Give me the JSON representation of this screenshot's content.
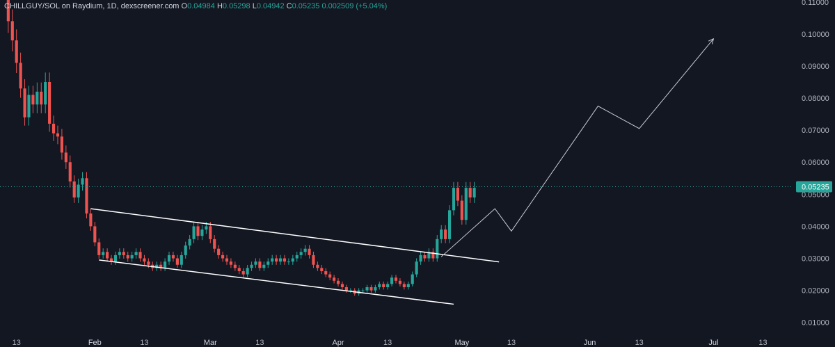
{
  "legend": {
    "symbol": "CHILLGUY/SOL on Raydium, 1D, dexscreener.com",
    "o_label": "O",
    "o_value": "0.04984",
    "h_label": "H",
    "h_value": "0.05298",
    "l_label": "L",
    "l_value": "0.04942",
    "c_label": "C",
    "c_value": "0.05235",
    "change": "0.002509 (+5.04%)"
  },
  "colors": {
    "background": "#131722",
    "up": "#26a69a",
    "down": "#ef5350",
    "axis_text": "#b2b5be",
    "last_price_badge": "#26a69a",
    "trendline": "#ffffff",
    "projection": "#c8cbd3"
  },
  "chart_data": {
    "type": "candlestick",
    "title": "",
    "xlabel": "",
    "ylabel": "",
    "ylim": [
      0.0069,
      0.1106
    ],
    "x_range": [
      "2025-01-09",
      "2025-07-20"
    ],
    "grid": false,
    "y_ticks": [
      "0.11000",
      "0.10000",
      "0.09000",
      "0.08000",
      "0.07000",
      "0.06000",
      "0.05000",
      "0.04000",
      "0.03000",
      "0.02000",
      "0.01000"
    ],
    "x_ticks": [
      {
        "label": "13",
        "date": "2025-01-13",
        "major": false
      },
      {
        "label": "Feb",
        "date": "2025-02-01",
        "major": true
      },
      {
        "label": "13",
        "date": "2025-02-13",
        "major": false
      },
      {
        "label": "Mar",
        "date": "2025-03-01",
        "major": true
      },
      {
        "label": "13",
        "date": "2025-03-13",
        "major": false
      },
      {
        "label": "Apr",
        "date": "2025-04-01",
        "major": true
      },
      {
        "label": "13",
        "date": "2025-04-13",
        "major": false
      },
      {
        "label": "May",
        "date": "2025-05-01",
        "major": true
      },
      {
        "label": "13",
        "date": "2025-05-13",
        "major": false
      },
      {
        "label": "Jun",
        "date": "2025-06-01",
        "major": true
      },
      {
        "label": "13",
        "date": "2025-06-13",
        "major": false
      },
      {
        "label": "Jul",
        "date": "2025-07-01",
        "major": true
      },
      {
        "label": "13",
        "date": "2025-07-13",
        "major": false
      }
    ],
    "last_price": "0.05235",
    "last_price_value": 0.05235,
    "closes": [
      0.116,
      0.104,
      0.098,
      0.091,
      0.083,
      0.074,
      0.081,
      0.078,
      0.082,
      0.078,
      0.085,
      0.072,
      0.069,
      0.068,
      0.063,
      0.06,
      0.054,
      0.049,
      0.053,
      0.055,
      0.044,
      0.04,
      0.035,
      0.031,
      0.032,
      0.03,
      0.029,
      0.031,
      0.032,
      0.031,
      0.03,
      0.031,
      0.032,
      0.03,
      0.029,
      0.028,
      0.027,
      0.028,
      0.027,
      0.029,
      0.031,
      0.03,
      0.028,
      0.031,
      0.034,
      0.036,
      0.04,
      0.037,
      0.039,
      0.04,
      0.036,
      0.033,
      0.031,
      0.03,
      0.029,
      0.028,
      0.027,
      0.026,
      0.025,
      0.027,
      0.028,
      0.029,
      0.027,
      0.028,
      0.029,
      0.03,
      0.029,
      0.03,
      0.029,
      0.029,
      0.03,
      0.031,
      0.032,
      0.033,
      0.031,
      0.028,
      0.027,
      0.026,
      0.025,
      0.024,
      0.023,
      0.022,
      0.021,
      0.02,
      0.02,
      0.019,
      0.02,
      0.02,
      0.021,
      0.02,
      0.021,
      0.022,
      0.021,
      0.022,
      0.024,
      0.023,
      0.022,
      0.021,
      0.022,
      0.025,
      0.029,
      0.031,
      0.03,
      0.032,
      0.03,
      0.036,
      0.039,
      0.036,
      0.045,
      0.052,
      0.048,
      0.042,
      0.052,
      0.049,
      0.052
    ]
  },
  "trendlines": [
    {
      "name": "channel-upper",
      "from": {
        "date": "2025-01-31",
        "price": 0.0455
      },
      "to": {
        "date": "2025-05-10",
        "price": 0.0289
      }
    },
    {
      "name": "channel-lower",
      "from": {
        "date": "2025-02-02",
        "price": 0.0295
      },
      "to": {
        "date": "2025-04-29",
        "price": 0.0157
      }
    }
  ],
  "projection_path": [
    {
      "date": "2025-04-26",
      "price": 0.0305
    },
    {
      "date": "2025-05-09",
      "price": 0.0455
    },
    {
      "date": "2025-05-13",
      "price": 0.0385
    },
    {
      "date": "2025-06-03",
      "price": 0.0775
    },
    {
      "date": "2025-06-13",
      "price": 0.0705
    },
    {
      "date": "2025-07-01",
      "price": 0.0985
    }
  ]
}
